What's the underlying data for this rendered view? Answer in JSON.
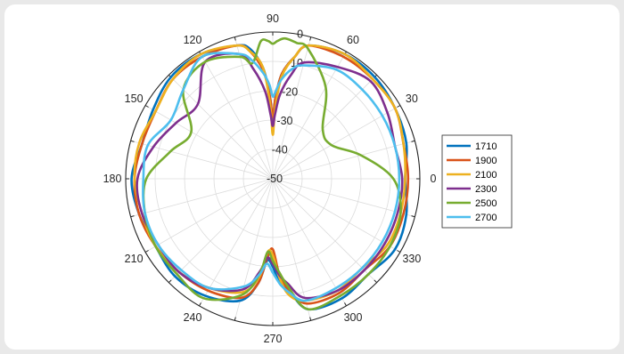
{
  "chart_data": {
    "type": "line",
    "polar": true,
    "title": "",
    "theta_ticks": [
      "0",
      "30",
      "60",
      "90",
      "120",
      "150",
      "180",
      "210",
      "240",
      "270",
      "300",
      "330"
    ],
    "r_ticks": [
      "-50",
      "-40",
      "-30",
      "-20",
      "-10",
      "0"
    ],
    "r_range": [
      -50,
      0
    ],
    "grid": true,
    "legend_position": "right",
    "angles": [
      0,
      15,
      30,
      45,
      60,
      75,
      80,
      85,
      88,
      90,
      92,
      95,
      100,
      105,
      120,
      135,
      150,
      165,
      180,
      195,
      210,
      225,
      240,
      255,
      262,
      266,
      270,
      274,
      278,
      285,
      300,
      315,
      330,
      345
    ],
    "series": [
      {
        "name": "1710",
        "color": "#0072BD",
        "values": [
          -5,
          -3,
          -2,
          -1,
          -1,
          -3,
          -8,
          -14,
          -22,
          -30,
          -22,
          -12,
          -5,
          -3,
          -1,
          -1,
          -3,
          -4,
          -2,
          -3,
          -4,
          -3,
          -4,
          -7,
          -14,
          -22,
          -20,
          -14,
          -12,
          -4,
          -3,
          -4,
          -2,
          -3
        ]
      },
      {
        "name": "1900",
        "color": "#D95319",
        "values": [
          -4,
          -4,
          -2,
          -2,
          -2,
          -3,
          -8,
          -14,
          -22,
          -29,
          -22,
          -13,
          -6,
          -3,
          -2,
          -2,
          -4,
          -4,
          -3,
          -3,
          -4,
          -5,
          -6,
          -8,
          -14,
          -23,
          -26,
          -17,
          -12,
          -6,
          -5,
          -6,
          -4,
          -4
        ]
      },
      {
        "name": "2100",
        "color": "#EDB120",
        "values": [
          -5,
          -4,
          -2,
          -2,
          -1,
          -3,
          -8,
          -15,
          -26,
          -35,
          -25,
          -12,
          -6,
          -3,
          -1,
          -2,
          -4,
          -3,
          -3,
          -4,
          -4,
          -5,
          -7,
          -10,
          -16,
          -25,
          -24,
          -16,
          -10,
          -7,
          -6,
          -7,
          -5,
          -5
        ]
      },
      {
        "name": "2300",
        "color": "#7E2F8E",
        "values": [
          -6,
          -7,
          -5,
          -3,
          -6,
          -9,
          -14,
          -21,
          -28,
          -32,
          -28,
          -20,
          -12,
          -6,
          -4,
          -14,
          -12,
          -8,
          -4,
          -4,
          -5,
          -5,
          -7,
          -11,
          -18,
          -23,
          -21,
          -17,
          -14,
          -8,
          -6,
          -6,
          -6,
          -6
        ]
      },
      {
        "name": "2500",
        "color": "#77AC30",
        "values": [
          -9,
          -19,
          -27,
          -26,
          -14,
          -4,
          -3,
          -2,
          -3,
          -4,
          -3,
          -3,
          -10,
          -7,
          -4,
          -7,
          -18,
          -14,
          -7,
          -5,
          -4,
          -4,
          -3,
          -9,
          -17,
          -25,
          -22,
          -18,
          -13,
          -4,
          -4,
          -4,
          -4,
          -5
        ]
      },
      {
        "name": "2700",
        "color": "#4DBEEE",
        "values": [
          -7,
          -7,
          -7,
          -7,
          -7,
          -10,
          -12,
          -16,
          -20,
          -22,
          -18,
          -14,
          -9,
          -6,
          -2,
          -7,
          -10,
          -6,
          -6,
          -5,
          -5,
          -6,
          -7,
          -12,
          -17,
          -21,
          -18,
          -14,
          -11,
          -7,
          -7,
          -7,
          -7,
          -7
        ]
      }
    ]
  }
}
